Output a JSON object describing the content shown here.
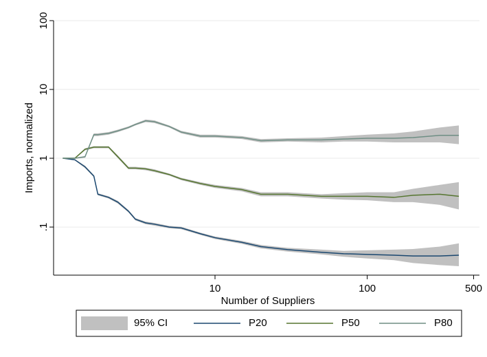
{
  "chart_data": {
    "type": "line",
    "x_label": "Number of Suppliers",
    "y_label": "Imports, normalized",
    "log_x": true,
    "log_y": true,
    "grid": true,
    "xlim": [
      0.87,
      546
    ],
    "ylim": [
      0.02,
      100
    ],
    "xticks": [
      10,
      100,
      500
    ],
    "yticks": [
      {
        "value": 0.1,
        "label": ".1"
      },
      1,
      10,
      100
    ],
    "ci_label": "95% CI",
    "ci_color": "#c0c0c0",
    "x": [
      1,
      1.2,
      1.4,
      1.6,
      1.7,
      2,
      2.3,
      2.7,
      3,
      3.5,
      4,
      5,
      6,
      8,
      10,
      15,
      20,
      30,
      50,
      70,
      100,
      150,
      200,
      300,
      400
    ],
    "series": [
      {
        "name": "P20",
        "color": "#1a476f",
        "values": [
          1,
          0.95,
          0.75,
          0.55,
          0.3,
          0.27,
          0.23,
          0.17,
          0.13,
          0.115,
          0.11,
          0.1,
          0.097,
          0.08,
          0.07,
          0.06,
          0.052,
          0.047,
          0.043,
          0.041,
          0.04,
          0.039,
          0.038,
          0.038,
          0.039
        ],
        "ci_low": [
          1,
          0.93,
          0.72,
          0.53,
          0.29,
          0.26,
          0.22,
          0.163,
          0.125,
          0.11,
          0.105,
          0.096,
          0.093,
          0.077,
          0.067,
          0.057,
          0.049,
          0.044,
          0.04,
          0.037,
          0.035,
          0.033,
          0.03,
          0.028,
          0.027
        ],
        "ci_high": [
          1,
          0.97,
          0.78,
          0.57,
          0.31,
          0.28,
          0.24,
          0.177,
          0.135,
          0.12,
          0.115,
          0.104,
          0.101,
          0.083,
          0.073,
          0.063,
          0.055,
          0.05,
          0.047,
          0.045,
          0.046,
          0.047,
          0.048,
          0.052,
          0.058
        ]
      },
      {
        "name": "P50",
        "color": "#55752f",
        "values": [
          1,
          1.0,
          1.35,
          1.45,
          1.45,
          1.45,
          1.05,
          0.72,
          0.72,
          0.7,
          0.66,
          0.58,
          0.5,
          0.43,
          0.39,
          0.35,
          0.3,
          0.3,
          0.28,
          0.28,
          0.28,
          0.27,
          0.29,
          0.3,
          0.28
        ],
        "ci_low": [
          1,
          0.98,
          1.3,
          1.4,
          1.4,
          1.4,
          1.0,
          0.69,
          0.69,
          0.67,
          0.63,
          0.56,
          0.48,
          0.41,
          0.37,
          0.33,
          0.28,
          0.28,
          0.26,
          0.25,
          0.245,
          0.23,
          0.23,
          0.21,
          0.18
        ],
        "ci_high": [
          1,
          1.02,
          1.4,
          1.5,
          1.5,
          1.5,
          1.1,
          0.75,
          0.75,
          0.73,
          0.69,
          0.6,
          0.52,
          0.45,
          0.41,
          0.37,
          0.32,
          0.32,
          0.3,
          0.31,
          0.32,
          0.32,
          0.36,
          0.41,
          0.45
        ]
      },
      {
        "name": "P80",
        "color": "#6e8e84",
        "values": [
          1,
          1.0,
          1.05,
          2.2,
          2.2,
          2.3,
          2.5,
          2.8,
          3.1,
          3.5,
          3.4,
          2.9,
          2.4,
          2.1,
          2.1,
          2.0,
          1.8,
          1.85,
          1.85,
          1.9,
          1.95,
          1.95,
          2.0,
          2.15,
          2.15
        ],
        "ci_low": [
          1,
          0.98,
          1.02,
          2.1,
          2.1,
          2.2,
          2.4,
          2.7,
          3.0,
          3.35,
          3.25,
          2.8,
          2.3,
          2.0,
          2.0,
          1.9,
          1.7,
          1.75,
          1.7,
          1.75,
          1.75,
          1.7,
          1.7,
          1.7,
          1.6
        ],
        "ci_high": [
          1,
          1.02,
          1.08,
          2.3,
          2.3,
          2.4,
          2.6,
          2.9,
          3.2,
          3.65,
          3.55,
          3.0,
          2.5,
          2.2,
          2.2,
          2.1,
          1.9,
          1.95,
          2.0,
          2.1,
          2.2,
          2.3,
          2.45,
          2.8,
          3.0
        ]
      }
    ]
  }
}
